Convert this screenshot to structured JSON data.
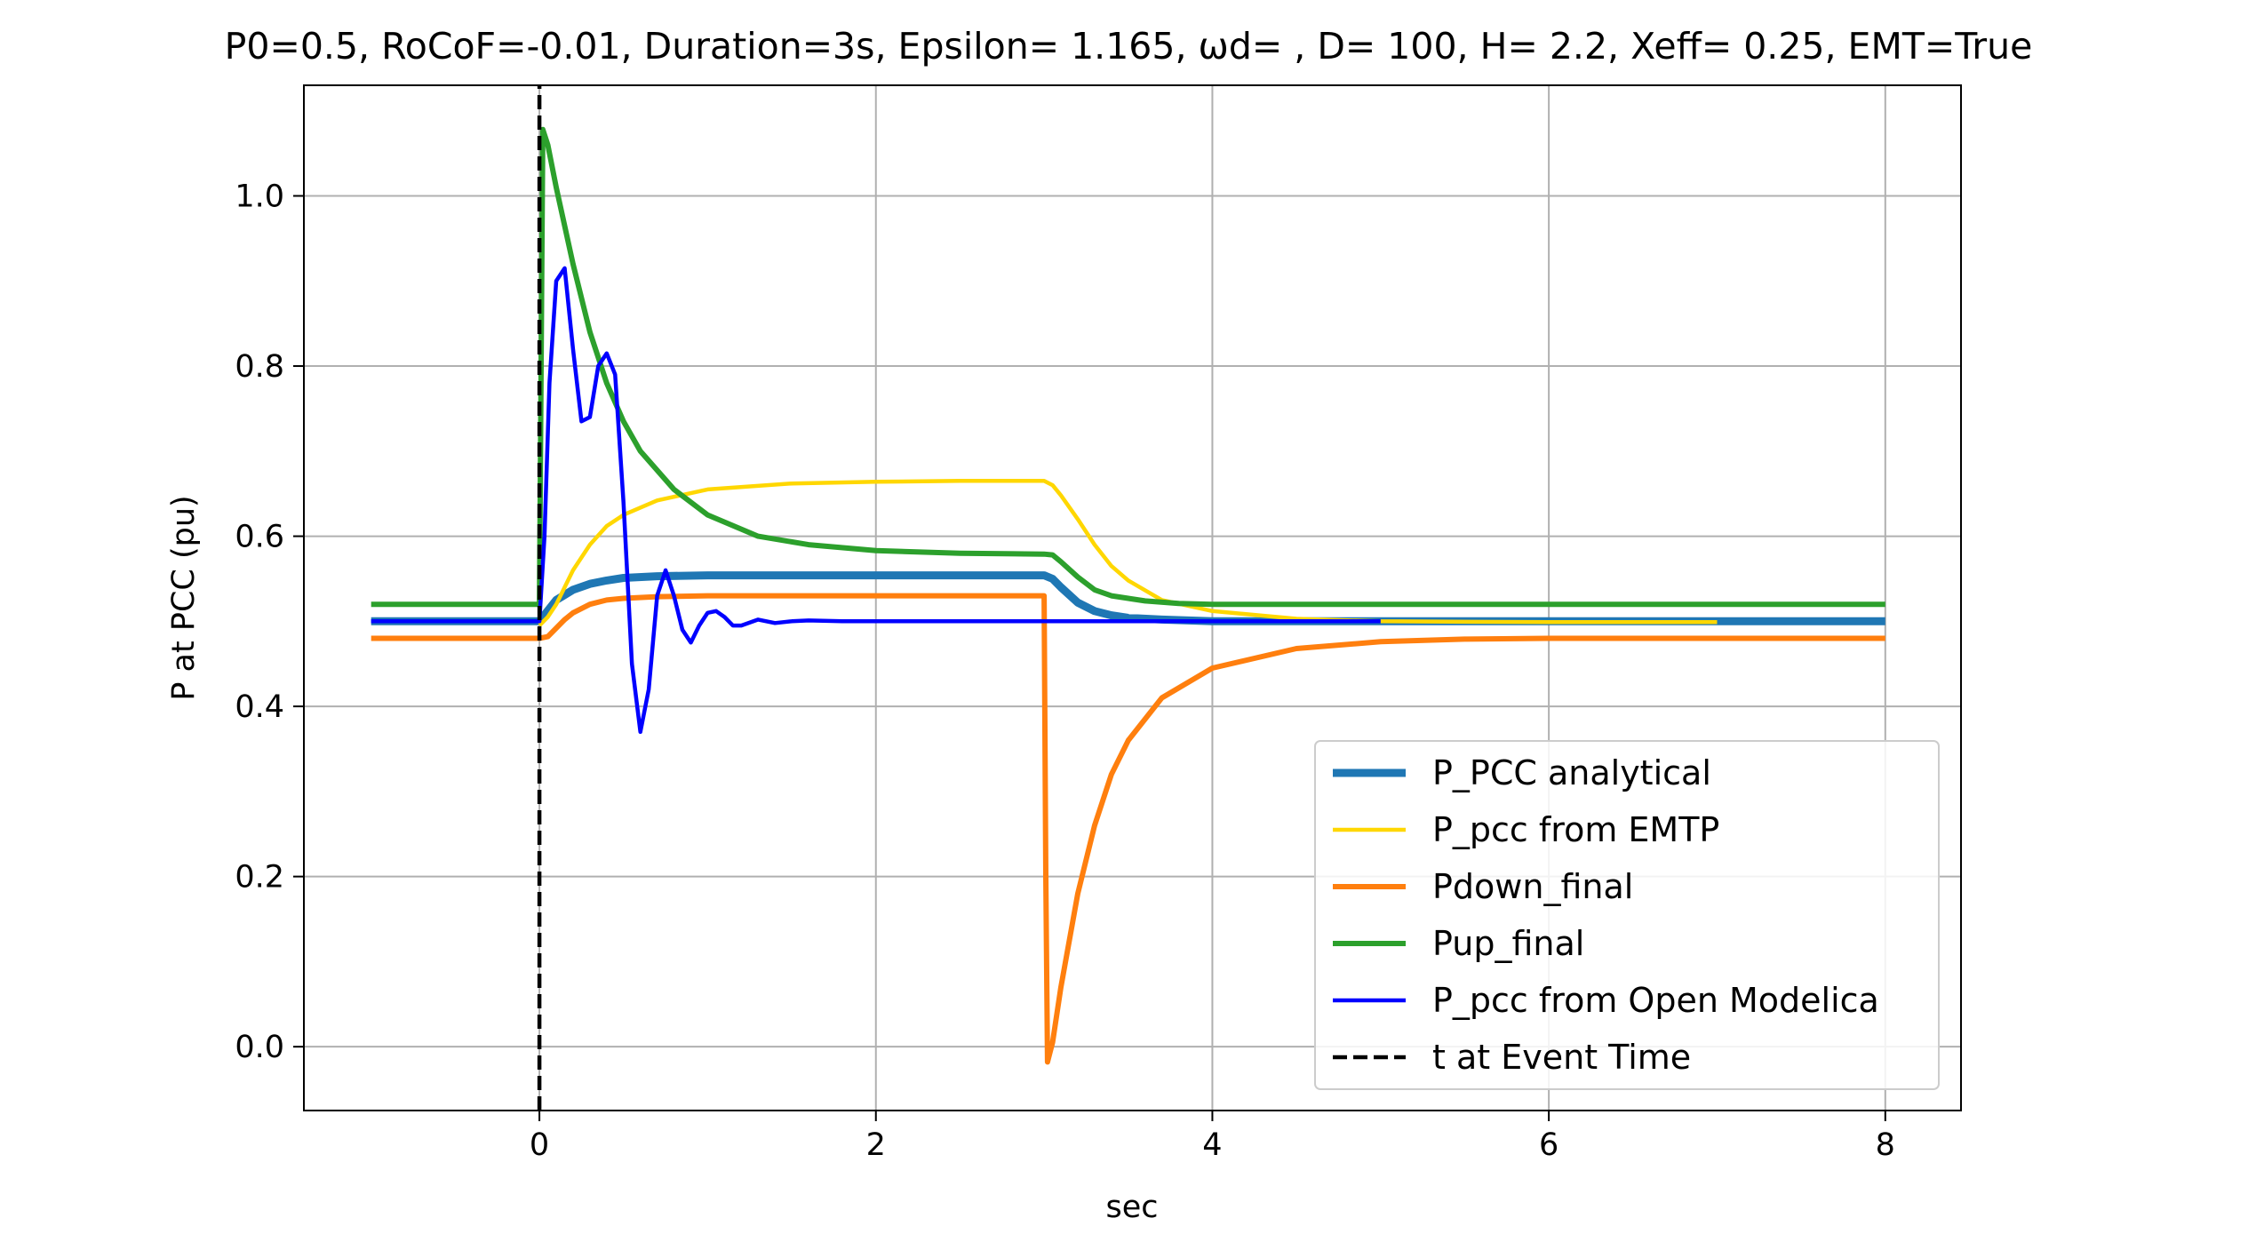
{
  "chart_data": {
    "type": "line",
    "title": "P0=0.5, RoCoF=-0.01, Duration=3s, Epsilon= 1.165, ωd= , D= 100, H= 2.2, Xeff= 0.25, EMT=True",
    "xlabel": "sec",
    "ylabel": "P at PCC (pu)",
    "xlim": [
      -1.4,
      8.45
    ],
    "ylim": [
      -0.075,
      1.13
    ],
    "xticks": [
      0,
      2,
      4,
      6,
      8
    ],
    "yticks": [
      0.0,
      0.2,
      0.4,
      0.6,
      0.8,
      1.0
    ],
    "xtick_labels": [
      "0",
      "2",
      "4",
      "6",
      "8"
    ],
    "ytick_labels": [
      "0.0",
      "0.2",
      "0.4",
      "0.6",
      "0.8",
      "1.0"
    ],
    "grid": true,
    "legend_position": "lower right",
    "series": [
      {
        "name": "P_PCC analytical",
        "color": "#1f77b4",
        "x": [
          -1.0,
          0.0,
          0.1,
          0.2,
          0.3,
          0.4,
          0.5,
          0.7,
          1.0,
          1.5,
          2.0,
          2.5,
          3.0,
          3.05,
          3.1,
          3.2,
          3.3,
          3.4,
          3.5,
          3.7,
          4.0,
          5.0,
          6.0,
          7.0,
          8.0
        ],
        "y": [
          0.5,
          0.5,
          0.525,
          0.537,
          0.544,
          0.548,
          0.551,
          0.553,
          0.554,
          0.554,
          0.554,
          0.554,
          0.554,
          0.55,
          0.54,
          0.522,
          0.512,
          0.507,
          0.504,
          0.502,
          0.5,
          0.5,
          0.5,
          0.5,
          0.5
        ]
      },
      {
        "name": "P_pcc from EMTP",
        "color": "#ffd700",
        "x": [
          0.0,
          0.05,
          0.1,
          0.15,
          0.2,
          0.3,
          0.4,
          0.5,
          0.7,
          1.0,
          1.5,
          2.0,
          2.5,
          3.0,
          3.05,
          3.1,
          3.2,
          3.3,
          3.4,
          3.5,
          3.7,
          4.0,
          4.5,
          5.0,
          6.0,
          7.0
        ],
        "y": [
          0.495,
          0.505,
          0.52,
          0.54,
          0.56,
          0.59,
          0.612,
          0.625,
          0.642,
          0.655,
          0.662,
          0.664,
          0.665,
          0.665,
          0.66,
          0.648,
          0.62,
          0.59,
          0.565,
          0.548,
          0.525,
          0.512,
          0.503,
          0.5,
          0.499,
          0.499
        ]
      },
      {
        "name": "Pdown_final",
        "color": "#ff7f0e",
        "x": [
          -1.0,
          0.0,
          0.05,
          0.1,
          0.15,
          0.2,
          0.3,
          0.4,
          0.5,
          0.7,
          1.0,
          1.5,
          2.0,
          2.5,
          3.0,
          3.01,
          3.02,
          3.05,
          3.1,
          3.2,
          3.3,
          3.4,
          3.5,
          3.7,
          4.0,
          4.5,
          5.0,
          5.5,
          6.0,
          7.0,
          8.0
        ],
        "y": [
          0.48,
          0.48,
          0.482,
          0.492,
          0.502,
          0.51,
          0.52,
          0.525,
          0.527,
          0.529,
          0.53,
          0.53,
          0.53,
          0.53,
          0.53,
          0.2,
          -0.018,
          0.005,
          0.07,
          0.18,
          0.26,
          0.32,
          0.36,
          0.41,
          0.445,
          0.468,
          0.476,
          0.479,
          0.48,
          0.48,
          0.48
        ]
      },
      {
        "name": "Pup_final",
        "color": "#2ca02c",
        "x": [
          -1.0,
          0.0,
          0.01,
          0.02,
          0.05,
          0.1,
          0.2,
          0.3,
          0.4,
          0.5,
          0.6,
          0.8,
          1.0,
          1.3,
          1.6,
          2.0,
          2.5,
          3.0,
          3.05,
          3.1,
          3.2,
          3.3,
          3.4,
          3.6,
          3.8,
          4.0,
          5.0,
          6.0,
          7.0,
          8.0
        ],
        "y": [
          0.52,
          0.52,
          0.8,
          1.078,
          1.06,
          1.01,
          0.92,
          0.84,
          0.78,
          0.735,
          0.7,
          0.655,
          0.625,
          0.6,
          0.59,
          0.583,
          0.58,
          0.579,
          0.578,
          0.57,
          0.552,
          0.537,
          0.53,
          0.524,
          0.521,
          0.52,
          0.52,
          0.52,
          0.52,
          0.52
        ]
      },
      {
        "name": "P_pcc from Open Modelica",
        "color": "#0000ff",
        "x": [
          -1.0,
          0.0,
          0.03,
          0.06,
          0.1,
          0.15,
          0.2,
          0.25,
          0.3,
          0.35,
          0.4,
          0.45,
          0.5,
          0.55,
          0.6,
          0.65,
          0.7,
          0.75,
          0.8,
          0.85,
          0.9,
          0.95,
          1.0,
          1.05,
          1.1,
          1.15,
          1.2,
          1.3,
          1.4,
          1.5,
          1.6,
          1.8,
          2.0,
          3.0,
          4.0,
          5.0
        ],
        "y": [
          0.5,
          0.5,
          0.6,
          0.78,
          0.9,
          0.915,
          0.82,
          0.735,
          0.74,
          0.8,
          0.815,
          0.79,
          0.64,
          0.45,
          0.37,
          0.42,
          0.53,
          0.56,
          0.53,
          0.49,
          0.475,
          0.495,
          0.51,
          0.512,
          0.505,
          0.495,
          0.495,
          0.502,
          0.498,
          0.5,
          0.501,
          0.5,
          0.5,
          0.5,
          0.5,
          0.5
        ]
      },
      {
        "name": "t at Event Time",
        "color": "#000000",
        "x": [
          0.0,
          0.0
        ],
        "y": [
          -0.075,
          1.13
        ],
        "style": "dashed"
      }
    ]
  }
}
